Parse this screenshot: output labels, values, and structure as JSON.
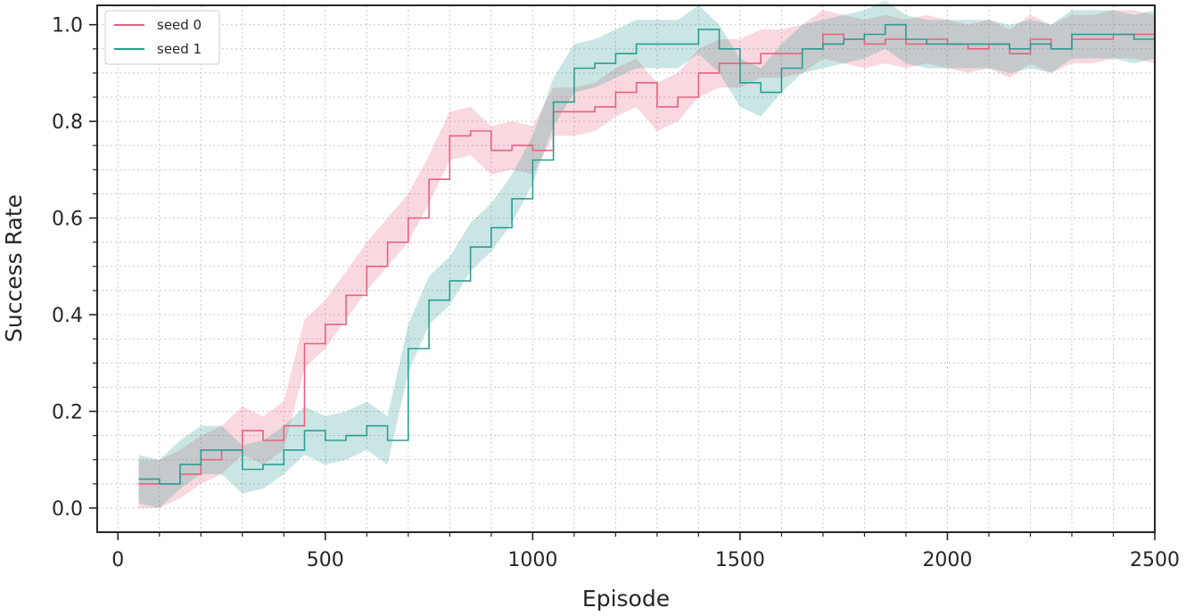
{
  "chart_data": {
    "type": "line",
    "title": "",
    "xlabel": "Episode",
    "ylabel": "Success Rate",
    "xlim": [
      -50,
      2500
    ],
    "ylim": [
      -0.05,
      1.04
    ],
    "xticks": [
      0,
      500,
      1000,
      1500,
      2000,
      2500
    ],
    "xtick_labels": [
      "0",
      "500",
      "1000",
      "1500",
      "2000",
      "2500"
    ],
    "yticks": [
      0.0,
      0.2,
      0.4,
      0.6,
      0.8,
      1.0
    ],
    "ytick_labels": [
      "0.0",
      "0.2",
      "0.4",
      "0.6",
      "0.8",
      "1.0"
    ],
    "grid": true,
    "grid_style": "dotted",
    "legend_position": "top-left",
    "series": [
      {
        "name": "seed 0",
        "color": "#e8627e",
        "band_width": 0.05,
        "x": [
          50,
          100,
          150,
          200,
          250,
          300,
          350,
          400,
          450,
          500,
          550,
          600,
          650,
          700,
          750,
          800,
          850,
          900,
          950,
          1000,
          1050,
          1100,
          1150,
          1200,
          1250,
          1300,
          1350,
          1400,
          1450,
          1500,
          1550,
          1600,
          1650,
          1700,
          1750,
          1800,
          1850,
          1900,
          1950,
          2000,
          2050,
          2100,
          2150,
          2200,
          2250,
          2300,
          2350,
          2400,
          2450,
          2500
        ],
        "values": [
          0.05,
          0.05,
          0.07,
          0.1,
          0.12,
          0.16,
          0.14,
          0.17,
          0.34,
          0.38,
          0.44,
          0.5,
          0.55,
          0.6,
          0.68,
          0.77,
          0.78,
          0.74,
          0.75,
          0.74,
          0.82,
          0.82,
          0.83,
          0.86,
          0.88,
          0.83,
          0.85,
          0.9,
          0.92,
          0.92,
          0.94,
          0.94,
          0.95,
          0.98,
          0.97,
          0.96,
          0.97,
          0.96,
          0.97,
          0.96,
          0.95,
          0.96,
          0.94,
          0.97,
          0.95,
          0.97,
          0.97,
          0.98,
          0.98,
          0.97
        ]
      },
      {
        "name": "seed 1",
        "color": "#2a9d92",
        "band_width": 0.05,
        "x": [
          50,
          100,
          150,
          200,
          250,
          300,
          350,
          400,
          450,
          500,
          550,
          600,
          650,
          700,
          750,
          800,
          850,
          900,
          950,
          1000,
          1050,
          1100,
          1150,
          1200,
          1250,
          1300,
          1350,
          1400,
          1450,
          1500,
          1550,
          1600,
          1650,
          1700,
          1750,
          1800,
          1850,
          1900,
          1950,
          2000,
          2050,
          2100,
          2150,
          2200,
          2250,
          2300,
          2350,
          2400,
          2450,
          2500
        ],
        "values": [
          0.06,
          0.05,
          0.09,
          0.12,
          0.12,
          0.08,
          0.09,
          0.12,
          0.16,
          0.14,
          0.15,
          0.17,
          0.14,
          0.33,
          0.43,
          0.47,
          0.54,
          0.58,
          0.64,
          0.72,
          0.84,
          0.91,
          0.92,
          0.94,
          0.96,
          0.96,
          0.96,
          0.99,
          0.95,
          0.88,
          0.86,
          0.91,
          0.95,
          0.96,
          0.97,
          0.98,
          1.0,
          0.97,
          0.96,
          0.96,
          0.96,
          0.96,
          0.95,
          0.96,
          0.95,
          0.98,
          0.98,
          0.98,
          0.97,
          0.98
        ]
      }
    ]
  }
}
